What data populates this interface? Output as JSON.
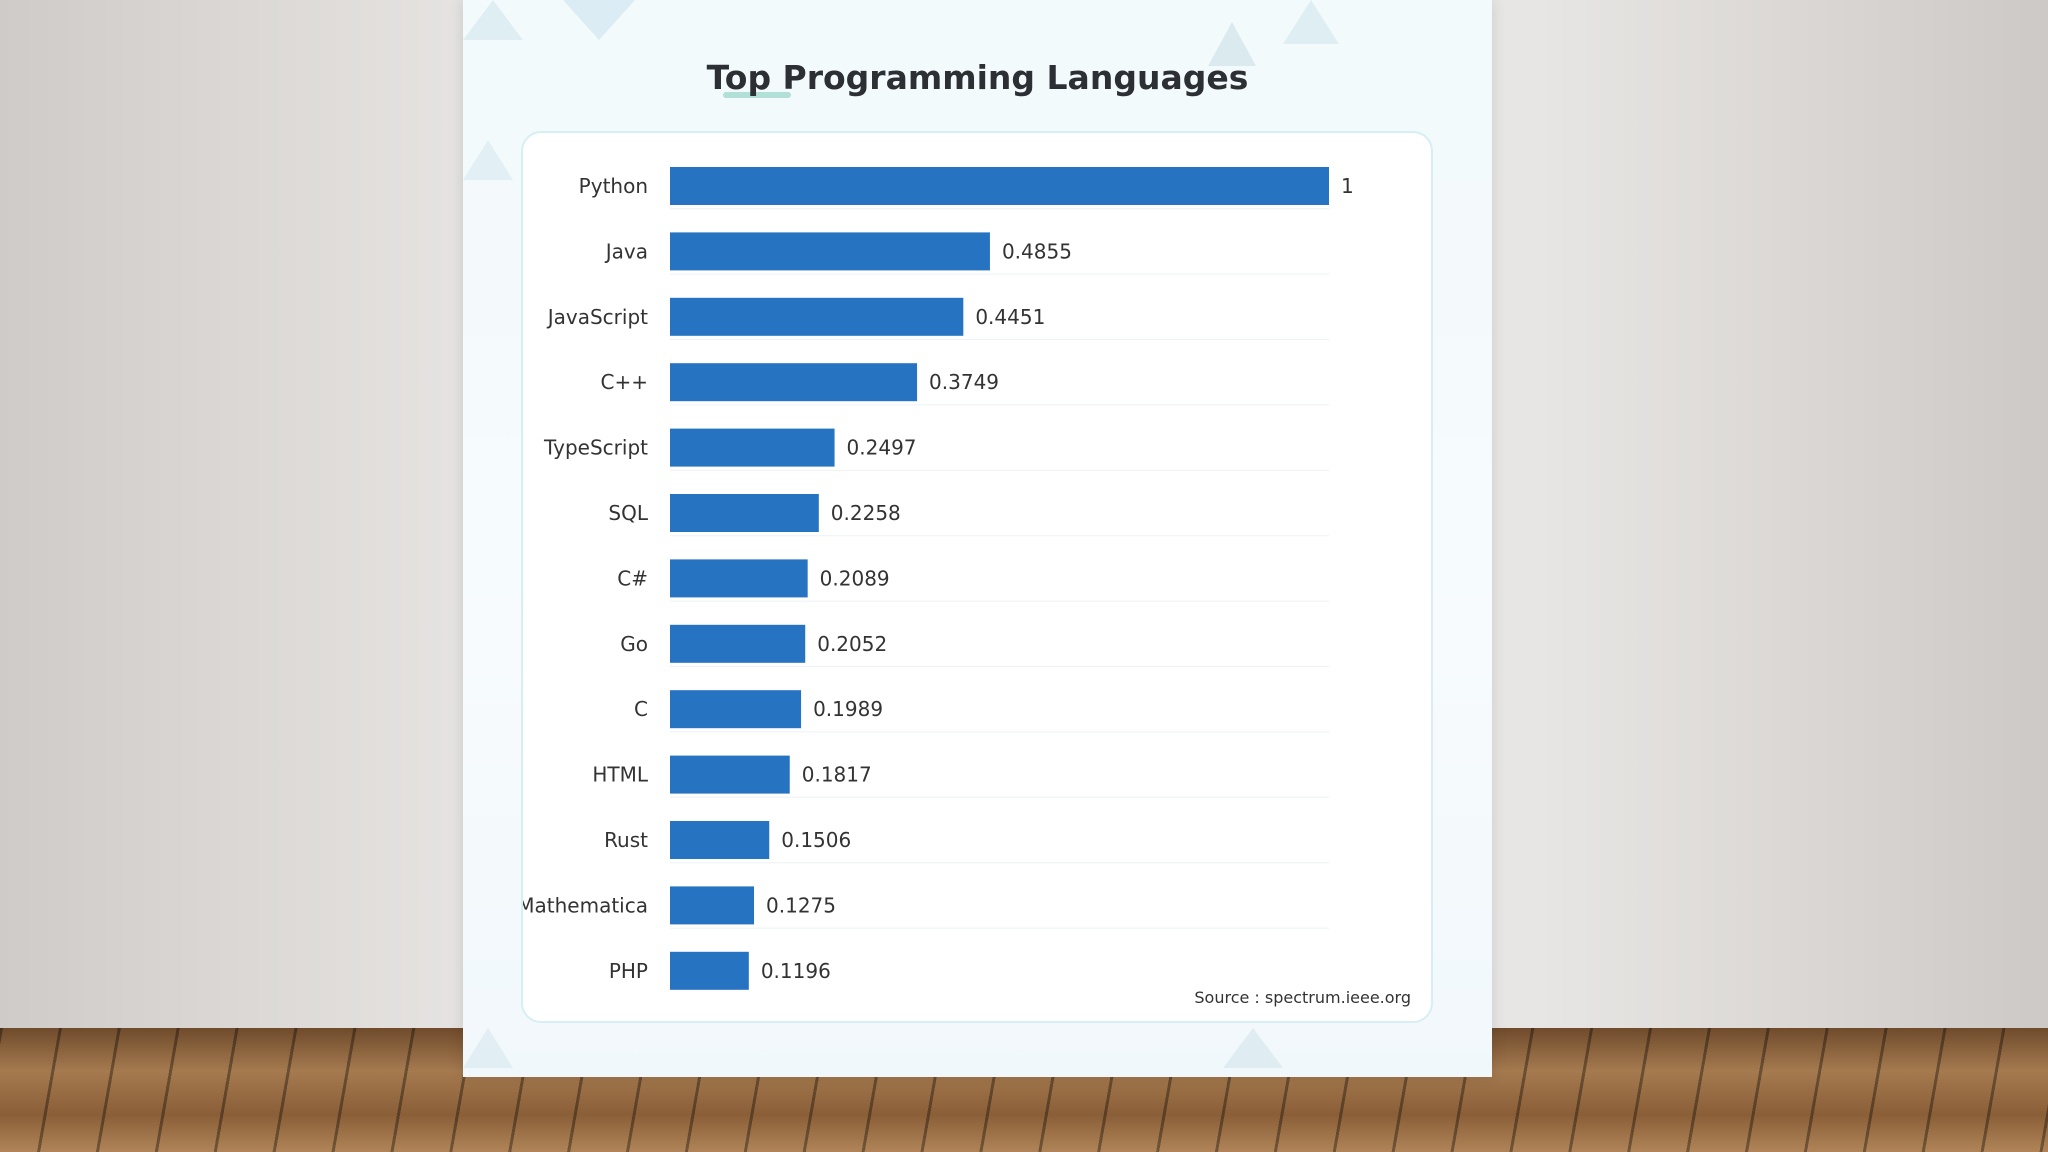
{
  "slide": {
    "title": "Top Programming Languages",
    "source": "Source : spectrum.ieee.org"
  },
  "colors": {
    "bar": "#2673c2",
    "text": "#333333",
    "gridline": "#eef2f4"
  },
  "chart_data": {
    "type": "bar",
    "orientation": "horizontal",
    "title": "Top Programming Languages",
    "xlabel": "",
    "ylabel": "",
    "xlim": [
      0,
      1
    ],
    "grid": true,
    "legend": "none",
    "categories": [
      "Python",
      "Java",
      "JavaScript",
      "C++",
      "TypeScript",
      "SQL",
      "C#",
      "Go",
      "C",
      "HTML",
      "Rust",
      "Mathematica",
      "PHP"
    ],
    "values": [
      1,
      0.4855,
      0.4451,
      0.3749,
      0.2497,
      0.2258,
      0.2089,
      0.2052,
      0.1989,
      0.1817,
      0.1506,
      0.1275,
      0.1196
    ],
    "value_labels": [
      "1",
      "0.4855",
      "0.4451",
      "0.3749",
      "0.2497",
      "0.2258",
      "0.2089",
      "0.2052",
      "0.1989",
      "0.1817",
      "0.1506",
      "0.1275",
      "0.1196"
    ]
  }
}
